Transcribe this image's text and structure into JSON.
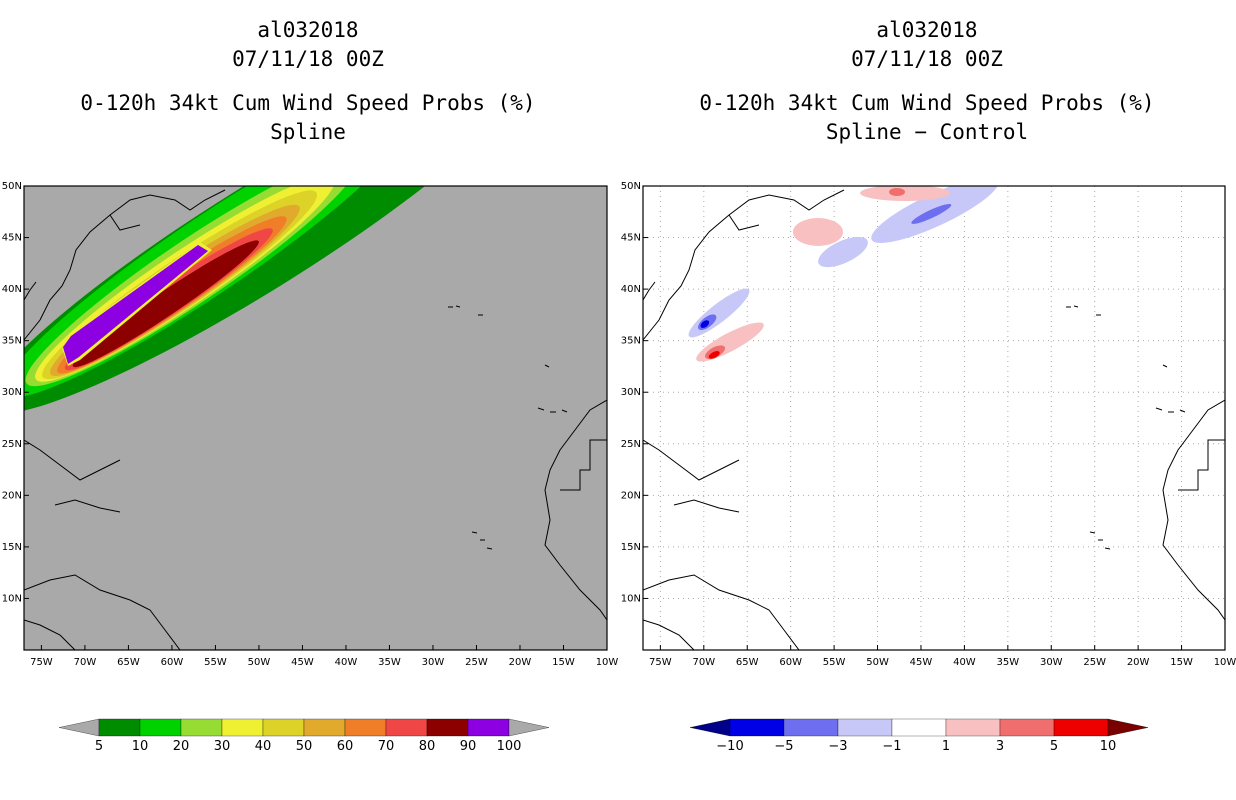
{
  "left_panel": {
    "storm_id": "al032018",
    "datetime": "07/11/18 00Z",
    "product": "0-120h 34kt Cum Wind Speed Probs (%)",
    "subtitle": "Spline",
    "background_color": "#a9a9a9"
  },
  "right_panel": {
    "storm_id": "al032018",
    "datetime": "07/11/18 00Z",
    "product": "0-120h 34kt Cum Wind Speed Probs (%)",
    "subtitle": "Spline − Control",
    "background_color": "#ffffff"
  },
  "map_extent": {
    "lon_min": -77,
    "lon_max": -10,
    "lat_min": 5,
    "lat_max": 50
  },
  "lat_ticks": [
    "10N",
    "15N",
    "20N",
    "25N",
    "30N",
    "35N",
    "40N",
    "45N",
    "50N"
  ],
  "lat_values": [
    10,
    15,
    20,
    25,
    30,
    35,
    40,
    45,
    50
  ],
  "lon_ticks": [
    "75W",
    "70W",
    "65W",
    "60W",
    "55W",
    "50W",
    "45W",
    "40W",
    "35W",
    "30W",
    "25W",
    "20W",
    "15W",
    "10W"
  ],
  "lon_values": [
    -75,
    -70,
    -65,
    -60,
    -55,
    -50,
    -45,
    -40,
    -35,
    -30,
    -25,
    -20,
    -15,
    -10
  ],
  "left_colorbar": {
    "labels": [
      "5",
      "10",
      "20",
      "30",
      "40",
      "50",
      "60",
      "70",
      "80",
      "90",
      "100"
    ],
    "colors": [
      "#008c00",
      "#00d200",
      "#96dc32",
      "#f0f032",
      "#dcd228",
      "#e1aa2d",
      "#f07d28",
      "#f04646",
      "#8c0000",
      "#8c00e1"
    ],
    "extension_color": "#a9a9a9"
  },
  "right_colorbar": {
    "labels": [
      "−10",
      "−5",
      "−3",
      "−1",
      "1",
      "3",
      "5",
      "10"
    ],
    "colors": [
      "#0000e6",
      "#6e6ef0",
      "#c8c8f8",
      "#ffffff",
      "#f8c0c0",
      "#f06e6e",
      "#ee0000"
    ],
    "low_extension_color": "#000088",
    "high_extension_color": "#7a0000"
  }
}
